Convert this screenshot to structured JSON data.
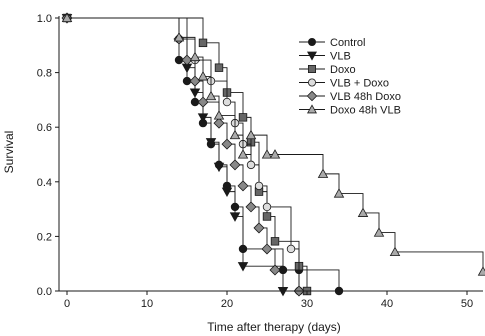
{
  "chart_data": {
    "type": "line",
    "xlabel": "Time after therapy (days)",
    "ylabel": "Survival",
    "xlim": [
      -1,
      52
    ],
    "ylim": [
      0,
      1.0
    ],
    "xticks": [
      "0",
      "10",
      "20",
      "30",
      "40",
      "50"
    ],
    "yticks": [
      "0.0",
      "0.2",
      "0.4",
      "0.6",
      "0.8",
      "1.0"
    ],
    "grid": false,
    "legend": "top-right",
    "series": [
      {
        "name": "Control",
        "marker": "circle",
        "fill": "#1a1a1a",
        "x": [
          0,
          14,
          15,
          16,
          17,
          18,
          19,
          20,
          21,
          22,
          27,
          29,
          34
        ],
        "y": [
          1.0,
          0.846,
          0.769,
          0.692,
          0.615,
          0.538,
          0.462,
          0.385,
          0.308,
          0.154,
          0.077,
          0.077,
          0.0
        ]
      },
      {
        "name": "VLB",
        "marker": "triangle-down",
        "fill": "#1a1a1a",
        "x": [
          0,
          15,
          16,
          17,
          18,
          19,
          20,
          21,
          22,
          27
        ],
        "y": [
          1.0,
          0.818,
          0.727,
          0.636,
          0.545,
          0.455,
          0.364,
          0.273,
          0.091,
          0.0
        ]
      },
      {
        "name": "Doxo",
        "marker": "square",
        "fill": "#666666",
        "x": [
          0,
          17,
          19,
          20,
          22,
          23,
          24,
          25,
          26,
          29,
          30
        ],
        "y": [
          1.0,
          0.909,
          0.818,
          0.727,
          0.636,
          0.545,
          0.364,
          0.273,
          0.182,
          0.091,
          0.0
        ]
      },
      {
        "name": "VLB + Doxo",
        "marker": "circle",
        "fill": "#dddddd",
        "x": [
          0,
          14,
          16,
          18,
          20,
          21,
          22,
          23,
          24,
          25,
          28,
          29
        ],
        "y": [
          1.0,
          0.923,
          0.846,
          0.769,
          0.692,
          0.615,
          0.538,
          0.462,
          0.385,
          0.308,
          0.154,
          0.0
        ]
      },
      {
        "name": "VLB 48h Doxo",
        "marker": "diamond",
        "fill": "#888888",
        "x": [
          0,
          14,
          15,
          16,
          17,
          19,
          20,
          21,
          22,
          23,
          24,
          25,
          26,
          29
        ],
        "y": [
          1.0,
          0.923,
          0.846,
          0.769,
          0.692,
          0.615,
          0.538,
          0.462,
          0.385,
          0.308,
          0.231,
          0.154,
          0.077,
          0.0
        ]
      },
      {
        "name": "Doxo 48h VLB",
        "marker": "triangle-up",
        "fill": "#aaaaaa",
        "x": [
          0,
          14,
          16,
          17,
          18,
          19,
          21,
          22,
          23,
          25,
          26,
          32,
          34,
          37,
          39,
          41,
          52
        ],
        "y": [
          1.0,
          0.929,
          0.857,
          0.786,
          0.714,
          0.643,
          0.571,
          0.5,
          0.571,
          0.5,
          0.5,
          0.429,
          0.357,
          0.286,
          0.214,
          0.143,
          0.071
        ]
      }
    ]
  }
}
